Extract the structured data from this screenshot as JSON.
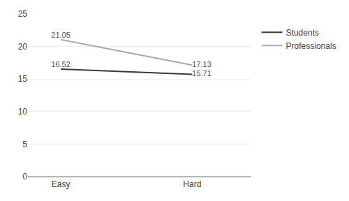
{
  "chart_data": {
    "type": "line",
    "categories": [
      "Easy",
      "Hard"
    ],
    "series": [
      {
        "name": "Students",
        "color": "#3a3a3a",
        "values": [
          16.52,
          15.71
        ]
      },
      {
        "name": "Professionals",
        "color": "#aaaaaa",
        "values": [
          21.05,
          17.13
        ]
      }
    ],
    "ylim": [
      0,
      25
    ],
    "yticks": [
      0,
      5,
      10,
      15,
      20,
      25
    ],
    "grid": true,
    "data_labels": true,
    "legend": "right"
  }
}
